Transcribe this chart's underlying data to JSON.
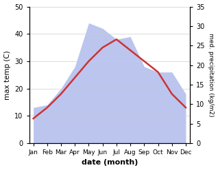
{
  "months": [
    "Jan",
    "Feb",
    "Mar",
    "Apr",
    "May",
    "Jun",
    "Jul",
    "Aug",
    "Sep",
    "Oct",
    "Nov",
    "Dec"
  ],
  "temperature": [
    9,
    13,
    18,
    24,
    30,
    35,
    38,
    34,
    30,
    26,
    18,
    13
  ],
  "precipitation_left": [
    13,
    14,
    20,
    28,
    44,
    42,
    38,
    39,
    28,
    26,
    26,
    18
  ],
  "temp_color": "#cc3333",
  "precip_fill_color": "#bbc5ee",
  "temp_ylim": [
    0,
    50
  ],
  "precip_ylim": [
    0,
    35
  ],
  "xlabel": "date (month)",
  "ylabel_left": "max temp (C)",
  "ylabel_right": "med. precipitation (kg/m2)",
  "temp_yticks": [
    0,
    10,
    20,
    30,
    40,
    50
  ],
  "precip_yticks": [
    0,
    5,
    10,
    15,
    20,
    25,
    30,
    35
  ],
  "bg_color": "#ffffff",
  "line_width": 1.8
}
